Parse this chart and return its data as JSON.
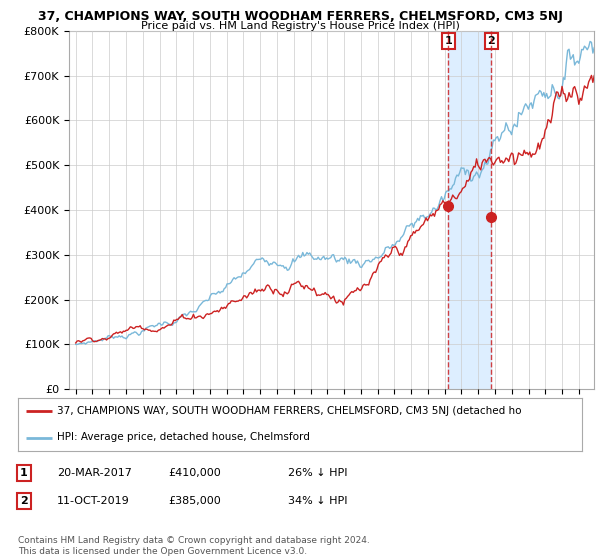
{
  "title": "37, CHAMPIONS WAY, SOUTH WOODHAM FERRERS, CHELMSFORD, CM3 5NJ",
  "subtitle": "Price paid vs. HM Land Registry's House Price Index (HPI)",
  "ylim": [
    0,
    800000
  ],
  "yticks": [
    0,
    100000,
    200000,
    300000,
    400000,
    500000,
    600000,
    700000,
    800000
  ],
  "ytick_labels": [
    "£0",
    "£100K",
    "£200K",
    "£300K",
    "£400K",
    "£500K",
    "£600K",
    "£700K",
    "£800K"
  ],
  "hpi_color": "#7ab8d9",
  "price_color": "#cc2222",
  "shade_color": "#ddeeff",
  "point1_year": 2017.21,
  "point1_price": 410000,
  "point2_year": 2019.78,
  "point2_price": 385000,
  "legend_line1": "37, CHAMPIONS WAY, SOUTH WOODHAM FERRERS, CHELMSFORD, CM3 5NJ (detached ho",
  "legend_line2": "HPI: Average price, detached house, Chelmsford",
  "table_rows": [
    [
      "1",
      "20-MAR-2017",
      "£410,000",
      "26% ↓ HPI"
    ],
    [
      "2",
      "11-OCT-2019",
      "£385,000",
      "34% ↓ HPI"
    ]
  ],
  "footer": "Contains HM Land Registry data © Crown copyright and database right 2024.\nThis data is licensed under the Open Government Licence v3.0.",
  "background_color": "#ffffff",
  "grid_color": "#cccccc"
}
